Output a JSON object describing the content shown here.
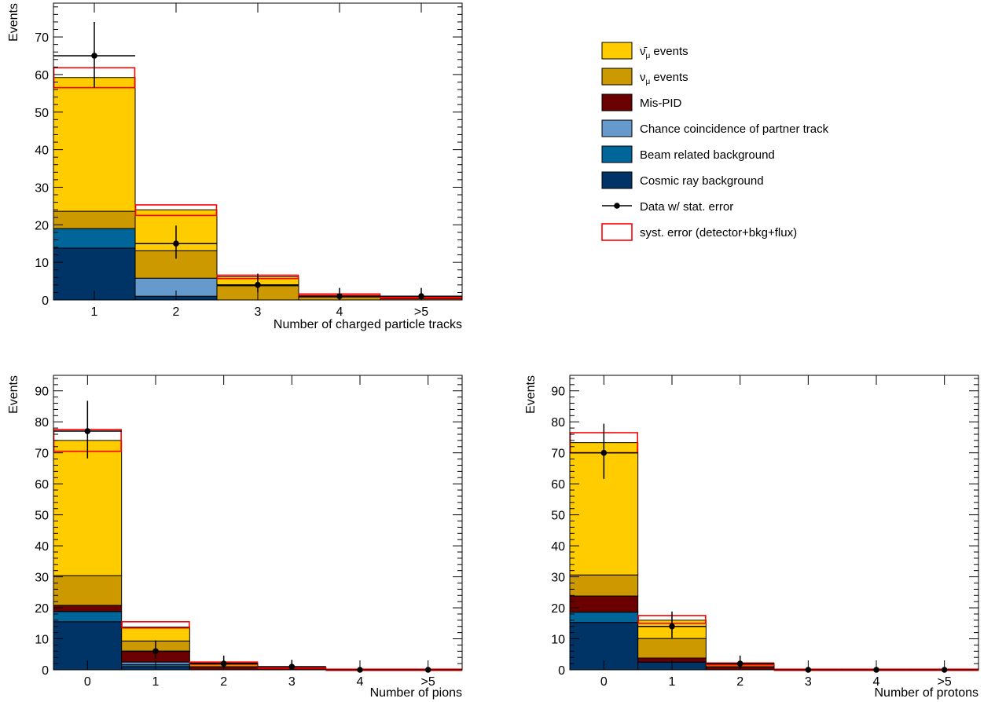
{
  "legend": {
    "items": [
      {
        "key": "antinumu",
        "label_main": "ν̄",
        "label_sub": "μ",
        "label_rest": " events",
        "color": "#ffcc00"
      },
      {
        "key": "numu",
        "label_main": "ν",
        "label_sub": "μ",
        "label_rest": " events",
        "color": "#cc9900"
      },
      {
        "key": "mispid",
        "label_main": "Mis-PID",
        "label_sub": "",
        "label_rest": "",
        "color": "#6b0000"
      },
      {
        "key": "chance",
        "label_main": "Chance coincidence of partner track",
        "label_sub": "",
        "label_rest": "",
        "color": "#6699cc"
      },
      {
        "key": "beam",
        "label_main": "Beam related background",
        "label_sub": "",
        "label_rest": "",
        "color": "#006699"
      },
      {
        "key": "cosmic",
        "label_main": "Cosmic ray background",
        "label_sub": "",
        "label_rest": "",
        "color": "#003366"
      }
    ],
    "data_label": "Data w/ stat. error",
    "syst_label": "syst. error (detector+bkg+flux)",
    "syst_color": "#ff0000"
  },
  "chart_data": [
    {
      "type": "bar",
      "stacked": true,
      "title": "",
      "xlabel": "Number of charged particle tracks",
      "ylabel": "Events",
      "categories": [
        "1",
        "2",
        "3",
        "4",
        ">5"
      ],
      "ylim": [
        0,
        79
      ],
      "yticks": [
        0,
        10,
        20,
        30,
        40,
        50,
        60,
        70
      ],
      "series": [
        {
          "key": "cosmic",
          "values": [
            13.8,
            1.0,
            0,
            0,
            0
          ]
        },
        {
          "key": "beam",
          "values": [
            5.2,
            0,
            0,
            0,
            0
          ]
        },
        {
          "key": "chance",
          "values": [
            0,
            4.8,
            0,
            0,
            0
          ]
        },
        {
          "key": "mispid",
          "values": [
            0,
            0,
            0,
            0,
            0
          ]
        },
        {
          "key": "numu",
          "values": [
            4.6,
            7.3,
            3.8,
            0.8,
            0.3
          ]
        },
        {
          "key": "antinumu",
          "values": [
            35.6,
            10.9,
            2.4,
            0.3,
            0.1
          ]
        }
      ],
      "syst_band": [
        [
          56.5,
          61.8
        ],
        [
          22.5,
          25.3
        ],
        [
          5.7,
          6.6
        ],
        [
          1.2,
          1.6
        ],
        [
          0.5,
          0.8
        ]
      ],
      "data": {
        "values": [
          65,
          15,
          4,
          1,
          1
        ],
        "err_low": [
          8.5,
          4.0,
          2.0,
          1.0,
          1.0
        ],
        "err_high": [
          9.0,
          4.8,
          3.0,
          2.2,
          2.2
        ]
      }
    },
    {
      "type": "bar",
      "stacked": true,
      "title": "",
      "xlabel": "Number of pions",
      "ylabel": "Events",
      "categories": [
        "0",
        "1",
        "2",
        "3",
        "4",
        ">5"
      ],
      "ylim": [
        0,
        95
      ],
      "yticks": [
        0,
        10,
        20,
        30,
        40,
        50,
        60,
        70,
        80,
        90
      ],
      "series": [
        {
          "key": "cosmic",
          "values": [
            15.5,
            1.0,
            0,
            0,
            0,
            0
          ]
        },
        {
          "key": "beam",
          "values": [
            3.3,
            0.7,
            0,
            0,
            0,
            0
          ]
        },
        {
          "key": "chance",
          "values": [
            0,
            0.8,
            0,
            0,
            0,
            0
          ]
        },
        {
          "key": "mispid",
          "values": [
            2.0,
            3.5,
            1.0,
            0.4,
            0,
            0
          ]
        },
        {
          "key": "numu",
          "values": [
            9.6,
            3.3,
            0.8,
            0.3,
            0.1,
            0
          ]
        },
        {
          "key": "antinumu",
          "values": [
            43.6,
            4.5,
            0.4,
            0.1,
            0.1,
            0.1
          ]
        }
      ],
      "syst_band": [
        [
          70.5,
          77.5
        ],
        [
          13.5,
          15.5
        ],
        [
          1.8,
          2.5
        ],
        [
          0.6,
          0.9
        ],
        [
          0.1,
          0.2
        ],
        [
          0.1,
          0.2
        ]
      ],
      "data": {
        "values": [
          77,
          6,
          2,
          1,
          0,
          0
        ],
        "err_low": [
          8.8,
          2.4,
          1.4,
          1.0,
          0,
          0
        ],
        "err_high": [
          9.8,
          3.5,
          2.6,
          2.2,
          0,
          0
        ]
      }
    },
    {
      "type": "bar",
      "stacked": true,
      "title": "",
      "xlabel": "Number of protons",
      "ylabel": "Events",
      "categories": [
        "0",
        "1",
        "2",
        "3",
        "4",
        ">5"
      ],
      "ylim": [
        0,
        95
      ],
      "yticks": [
        0,
        10,
        20,
        30,
        40,
        50,
        60,
        70,
        80,
        90
      ],
      "series": [
        {
          "key": "cosmic",
          "values": [
            15.3,
            2.5,
            0,
            0,
            0,
            0
          ]
        },
        {
          "key": "beam",
          "values": [
            3.3,
            0,
            0,
            0,
            0,
            0
          ]
        },
        {
          "key": "chance",
          "values": [
            0,
            0,
            0,
            0,
            0,
            0
          ]
        },
        {
          "key": "mispid",
          "values": [
            5.2,
            1.3,
            1.0,
            0,
            0,
            0
          ]
        },
        {
          "key": "numu",
          "values": [
            6.8,
            6.3,
            0.7,
            0.1,
            0,
            0
          ]
        },
        {
          "key": "antinumu",
          "values": [
            42.7,
            5.9,
            0.3,
            0.1,
            0.1,
            0.1
          ]
        }
      ],
      "syst_band": [
        [
          70.0,
          76.5
        ],
        [
          15.0,
          17.5
        ],
        [
          1.6,
          2.2
        ],
        [
          0.1,
          0.2
        ],
        [
          0.1,
          0.2
        ],
        [
          0.1,
          0.2
        ]
      ],
      "data": {
        "values": [
          70,
          14,
          2,
          0,
          0,
          0
        ],
        "err_low": [
          8.4,
          3.7,
          1.4,
          0,
          0,
          0
        ],
        "err_high": [
          9.4,
          4.8,
          2.6,
          0,
          0,
          0
        ]
      }
    }
  ]
}
